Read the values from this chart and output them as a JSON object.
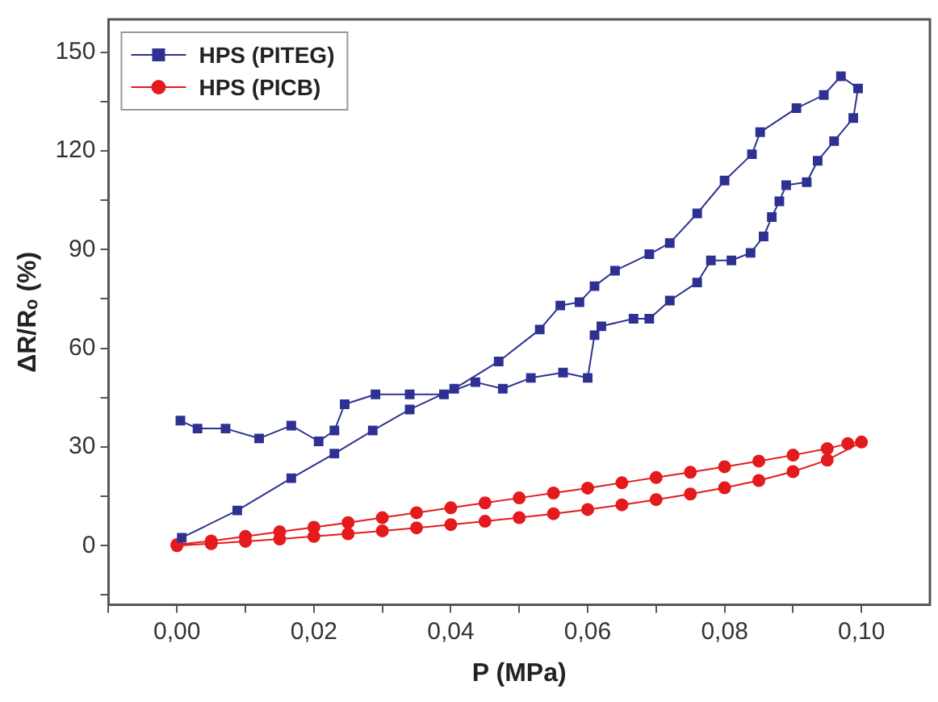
{
  "chart_data": {
    "type": "line",
    "xlabel": "P (MPa)",
    "ylabel": "ΔR/Rₒ (%)",
    "xlim": [
      -0.01,
      0.11
    ],
    "ylim": [
      -18,
      160
    ],
    "xticks": [
      {
        "value": -0.01,
        "label": null
      },
      {
        "value": 0,
        "label": "0,00"
      },
      {
        "value": 0.01,
        "label": null
      },
      {
        "value": 0.02,
        "label": "0,02"
      },
      {
        "value": 0.03,
        "label": null
      },
      {
        "value": 0.04,
        "label": "0,04"
      },
      {
        "value": 0.05,
        "label": null
      },
      {
        "value": 0.06,
        "label": "0,06"
      },
      {
        "value": 0.07,
        "label": null
      },
      {
        "value": 0.08,
        "label": "0,08"
      },
      {
        "value": 0.09,
        "label": null
      },
      {
        "value": 0.1,
        "label": "0,10"
      }
    ],
    "yticks": [
      {
        "value": -15,
        "label": null
      },
      0,
      {
        "value": 15,
        "label": null
      },
      30,
      {
        "value": 45,
        "label": null
      },
      60,
      {
        "value": 75,
        "label": null
      },
      90,
      {
        "value": 105,
        "label": null
      },
      120,
      {
        "value": 135,
        "label": null
      },
      150
    ],
    "grid": false,
    "legend": "top left",
    "line_style": "solid",
    "series": [
      {
        "name": "HPS (PITEG)",
        "color": "#2e3192",
        "marker": "square",
        "x": [
          0.0005,
          0.003,
          0.0071,
          0.012,
          0.0167,
          0.0207,
          0.023,
          0.0245,
          0.029,
          0.034,
          0.039,
          0.0436,
          0.0476,
          0.0517,
          0.0564,
          0.06,
          0.061,
          0.062,
          0.0667,
          0.069,
          0.072,
          0.076,
          0.078,
          0.081,
          0.0838,
          0.0857,
          0.0869,
          0.088,
          0.089,
          0.092,
          0.0936,
          0.096,
          0.0988,
          0.0995,
          0.097,
          0.0945,
          0.0905,
          0.0852,
          0.084,
          0.08,
          0.076,
          0.072,
          0.069,
          0.064,
          0.061,
          0.0588,
          0.056,
          0.053,
          0.047,
          0.0405,
          0.034,
          0.0286,
          0.023,
          0.0167,
          0.0088,
          0.0007
        ],
        "values": [
          38,
          35.6,
          35.6,
          32.6,
          36.5,
          31.7,
          35,
          43,
          46,
          46,
          46,
          49.7,
          47.7,
          51,
          52.6,
          51,
          64,
          66.7,
          69,
          69,
          74.5,
          80,
          86.7,
          86.7,
          89,
          94,
          99.9,
          104.7,
          109.6,
          110.5,
          117,
          123,
          130,
          139,
          142.7,
          137,
          133,
          125.7,
          119,
          111,
          101,
          92,
          88.6,
          83.6,
          78.9,
          74,
          73,
          65.7,
          56,
          47.7,
          41.4,
          35,
          28,
          20.5,
          10.7,
          2.4
        ]
      },
      {
        "name": "HPS (PICB)",
        "color": "#e41a1c",
        "marker": "circle",
        "x": [
          0,
          0.005,
          0.01,
          0.015,
          0.02,
          0.025,
          0.03,
          0.035,
          0.04,
          0.045,
          0.05,
          0.055,
          0.06,
          0.065,
          0.07,
          0.075,
          0.08,
          0.085,
          0.09,
          0.095,
          0.1,
          0.098,
          0.095,
          0.09,
          0.085,
          0.08,
          0.075,
          0.07,
          0.065,
          0.06,
          0.055,
          0.05,
          0.045,
          0.04,
          0.035,
          0.03,
          0.025,
          0.02,
          0.015,
          0.01,
          0.005,
          0
        ],
        "values": [
          0,
          0.6,
          1.3,
          2,
          2.8,
          3.6,
          4.5,
          5.4,
          6.4,
          7.4,
          8.5,
          9.7,
          11,
          12.4,
          14,
          15.7,
          17.6,
          19.8,
          22.5,
          26,
          31.5,
          31,
          29.5,
          27.5,
          25.7,
          24,
          22.3,
          20.7,
          19.1,
          17.5,
          16,
          14.5,
          13,
          11.5,
          10,
          8.5,
          7,
          5.6,
          4.2,
          2.8,
          1.4,
          0.3
        ]
      }
    ]
  }
}
